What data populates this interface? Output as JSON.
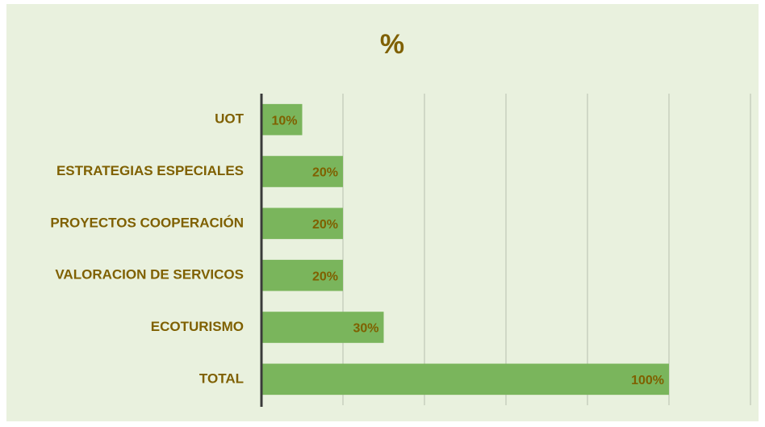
{
  "chart_data": {
    "type": "bar",
    "orientation": "horizontal",
    "title": "%",
    "categories": [
      "UOT",
      "ESTRATEGIAS ESPECIALES",
      "PROYECTOS COOPERACIÓN",
      "VALORACION DE SERVICOS",
      "ECOTURISMO",
      "TOTAL"
    ],
    "values": [
      10,
      20,
      20,
      20,
      30,
      100
    ],
    "value_labels": [
      "10%",
      "20%",
      "20%",
      "20%",
      "30%",
      "100%"
    ],
    "color": "#7ab55c",
    "xlim": [
      0,
      120
    ],
    "xticks": [
      0,
      20,
      40,
      60,
      80,
      100,
      120
    ],
    "grid": true
  }
}
